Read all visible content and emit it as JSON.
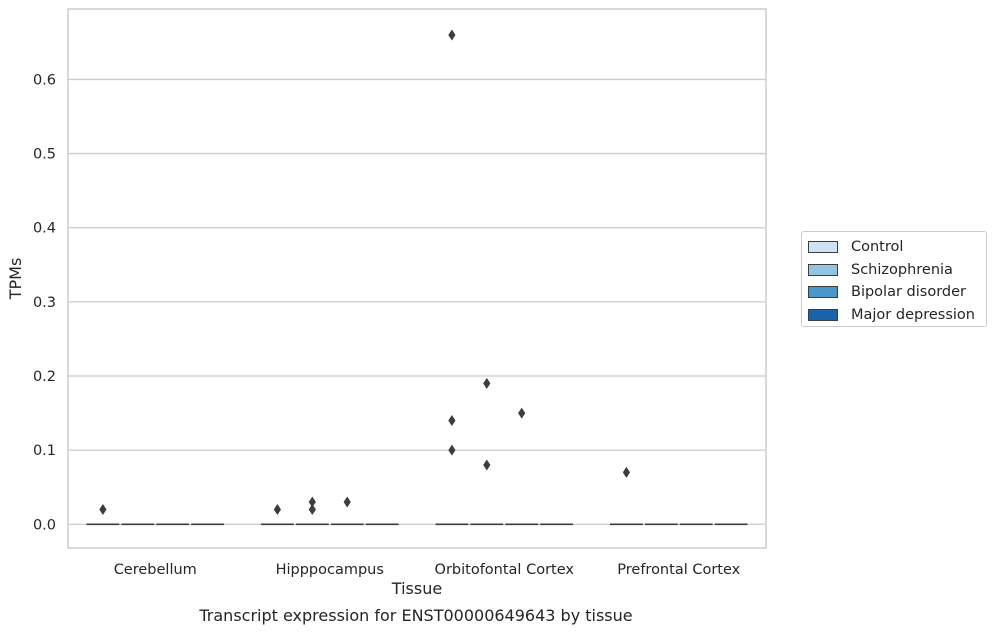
{
  "caption": "Transcript expression for ENST00000649643 by tissue",
  "chart_data": {
    "type": "boxplot",
    "xlabel": "Tissue",
    "ylabel": "TPMs",
    "ylim": [
      -0.032,
      0.695
    ],
    "yticks": [
      0.0,
      0.1,
      0.2,
      0.3,
      0.4,
      0.5,
      0.6
    ],
    "ytick_labels": [
      "0.0",
      "0.1",
      "0.2",
      "0.3",
      "0.4",
      "0.5",
      "0.6"
    ],
    "grid": "horizontal",
    "categories": [
      "Cerebellum",
      "Hipppocampus",
      "Orbitofontal Cortex",
      "Prefrontal Cortex"
    ],
    "series": [
      {
        "name": "Control",
        "color": "#d0e1f2",
        "median": [
          0,
          0,
          0,
          0
        ],
        "outliers": [
          [
            0.02
          ],
          [
            0.02
          ],
          [
            0.66,
            0.14,
            0.1
          ],
          [
            0.07
          ]
        ]
      },
      {
        "name": "Schizophrenia",
        "color": "#94c4df",
        "median": [
          0,
          0,
          0,
          0
        ],
        "outliers": [
          [],
          [
            0.02,
            0.03
          ],
          [
            0.19,
            0.08
          ],
          []
        ]
      },
      {
        "name": "Bipolar disorder",
        "color": "#4a98c9",
        "median": [
          0,
          0,
          0,
          0
        ],
        "outliers": [
          [],
          [
            0.03
          ],
          [
            0.15
          ],
          []
        ]
      },
      {
        "name": "Major depression",
        "color": "#1764ab",
        "median": [
          0,
          0,
          0,
          0
        ],
        "outliers": [
          [],
          [],
          [],
          []
        ]
      }
    ],
    "legend_position": "right"
  }
}
